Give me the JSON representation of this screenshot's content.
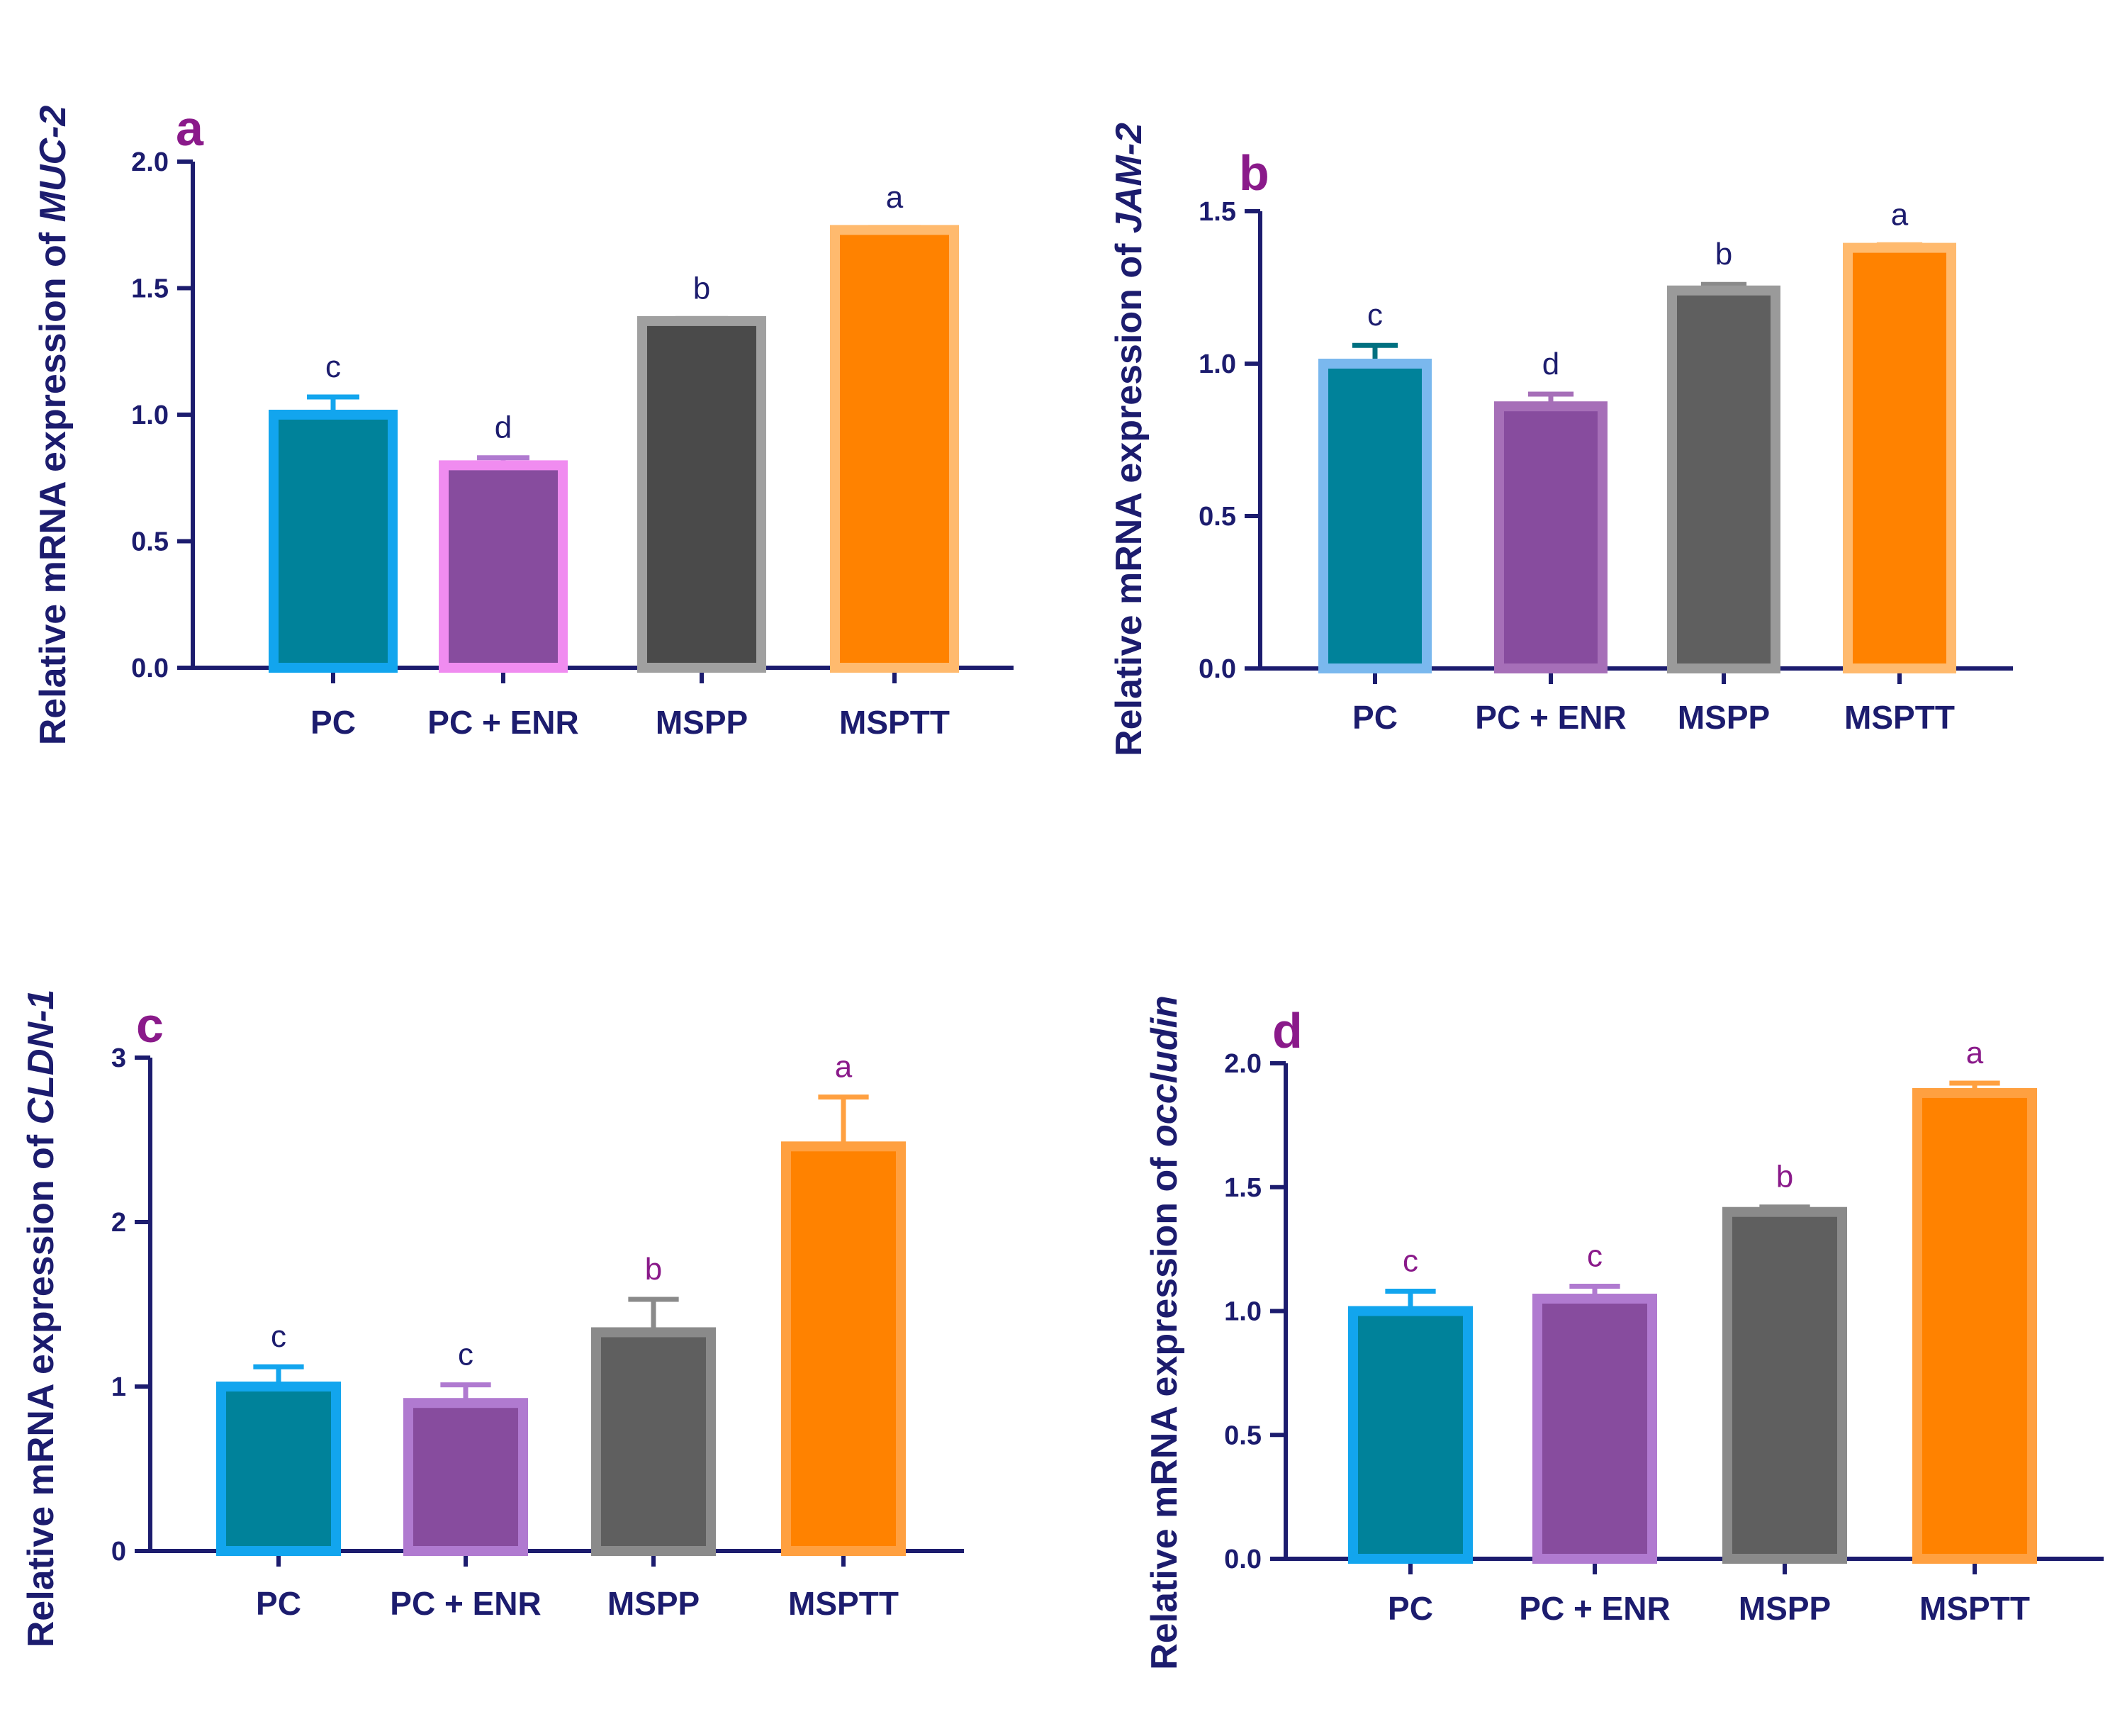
{
  "chart_data": [
    {
      "type": "bar",
      "panel": "a",
      "categories": [
        "PC",
        "PC + ENR",
        "MSPP",
        "MSPTT"
      ],
      "values": [
        1.0,
        0.8,
        1.37,
        1.73
      ],
      "errors": [
        0.07,
        0.03,
        0.01,
        0.01
      ],
      "significance": [
        "c",
        "d",
        "b",
        "a"
      ],
      "ylabel_prefix": "Relative mRNA expression of ",
      "ylabel_gene": "MUC-2",
      "ylim": [
        0,
        2.0
      ],
      "yticks": [
        0.0,
        0.5,
        1.0,
        1.5,
        2.0
      ],
      "ytick_labels": [
        "0.0",
        "0.5",
        "1.0",
        "1.5",
        "2.0"
      ],
      "fill_colors": [
        "#00829a",
        "#874c9e",
        "#4a4a4a",
        "#ff8200"
      ],
      "edge_colors": [
        "#12a5ee",
        "#f08cf0",
        "#a0a0a0",
        "#ffba6e"
      ],
      "error_colors": [
        "#12a5ee",
        "#b07ad0",
        "#8a8a8a",
        "#ffba6e"
      ],
      "sig_colors": [
        "#1c1c6e",
        "#1c1c6e",
        "#1c1c6e",
        "#1c1c6e"
      ]
    },
    {
      "type": "bar",
      "panel": "b",
      "categories": [
        "PC",
        "PC + ENR",
        "MSPP",
        "MSPTT"
      ],
      "values": [
        1.0,
        0.86,
        1.24,
        1.38
      ],
      "errors": [
        0.06,
        0.04,
        0.02,
        0.01
      ],
      "significance": [
        "c",
        "d",
        "b",
        "a"
      ],
      "ylabel_prefix": "Relative mRNA expression of  ",
      "ylabel_gene": "JAM-2",
      "ylim": [
        0,
        1.5
      ],
      "yticks": [
        0.0,
        0.5,
        1.0,
        1.5
      ],
      "ytick_labels": [
        "0.0",
        "0.5",
        "1.0",
        "1.5"
      ],
      "fill_colors": [
        "#00829a",
        "#874c9e",
        "#5f5f5f",
        "#ff8200"
      ],
      "edge_colors": [
        "#7ab8ee",
        "#a66fb8",
        "#9a9a9a",
        "#ffba6e"
      ],
      "error_colors": [
        "#007080",
        "#a66fb8",
        "#8a8a8a",
        "#ffba6e"
      ],
      "sig_colors": [
        "#1c1c6e",
        "#1c1c6e",
        "#1c1c6e",
        "#1c1c6e"
      ]
    },
    {
      "type": "bar",
      "panel": "c",
      "categories": [
        "PC",
        "PC + ENR",
        "MSPP",
        "MSPTT"
      ],
      "values": [
        1.0,
        0.9,
        1.33,
        2.46
      ],
      "errors": [
        0.12,
        0.11,
        0.2,
        0.3
      ],
      "significance": [
        "c",
        "c",
        "b",
        "a"
      ],
      "ylabel_prefix": "Relative mRNA expression of ",
      "ylabel_gene": "CLDN-1",
      "ylim": [
        0,
        3
      ],
      "yticks": [
        0,
        1,
        2,
        3
      ],
      "ytick_labels": [
        "0",
        "1",
        "2",
        "3"
      ],
      "fill_colors": [
        "#00829a",
        "#874c9e",
        "#5f5f5f",
        "#ff8200"
      ],
      "edge_colors": [
        "#12a5ee",
        "#b07ad0",
        "#8a8a8a",
        "#ffa040"
      ],
      "error_colors": [
        "#12a5ee",
        "#b07ad0",
        "#8a8a8a",
        "#ffa040"
      ],
      "sig_colors": [
        "#1c1c6e",
        "#1c1c6e",
        "#8a1a8a",
        "#8a1a8a"
      ]
    },
    {
      "type": "bar",
      "panel": "d",
      "categories": [
        "PC",
        "PC + ENR",
        "MSPP",
        "MSPTT"
      ],
      "values": [
        1.0,
        1.05,
        1.4,
        1.88
      ],
      "errors": [
        0.08,
        0.05,
        0.02,
        0.04
      ],
      "significance": [
        "c",
        "c",
        "b",
        "a"
      ],
      "ylabel_prefix": "Relative mRNA expression of ",
      "ylabel_gene": "occludin",
      "ylim": [
        0,
        2.0
      ],
      "yticks": [
        0.0,
        0.5,
        1.0,
        1.5,
        2.0
      ],
      "ytick_labels": [
        "0.0",
        "0.5",
        "1.0",
        "1.5",
        "2.0"
      ],
      "fill_colors": [
        "#00829a",
        "#874c9e",
        "#5f5f5f",
        "#ff8200"
      ],
      "edge_colors": [
        "#12a5ee",
        "#b07ad0",
        "#8a8a8a",
        "#ffa040"
      ],
      "error_colors": [
        "#12a5ee",
        "#b07ad0",
        "#8a8a8a",
        "#ffa040"
      ],
      "sig_colors": [
        "#8a1a8a",
        "#8a1a8a",
        "#8a1a8a",
        "#8a1a8a"
      ]
    }
  ]
}
